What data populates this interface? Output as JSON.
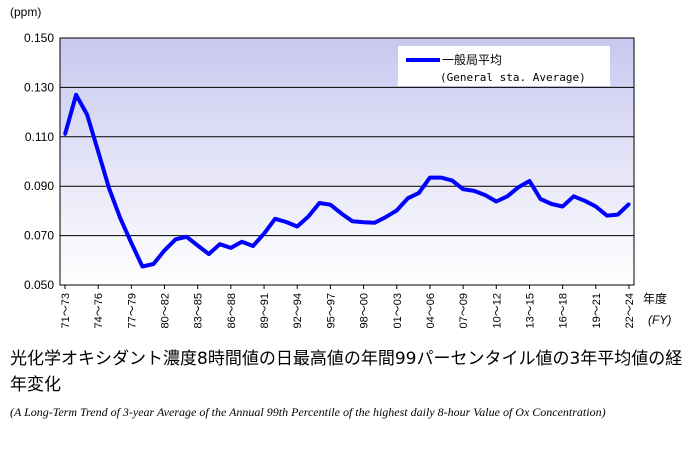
{
  "chart_data": {
    "type": "line",
    "y_unit": "(ppm)",
    "x_unit": "年度",
    "x_unit_en": "(FY)",
    "ylim": [
      0.05,
      0.15
    ],
    "y_ticks": [
      "0.050",
      "0.070",
      "0.090",
      "0.110",
      "0.130",
      "0.150"
    ],
    "x_tick_labels": [
      "71～73",
      "74～76",
      "77～79",
      "80～82",
      "83～85",
      "86～88",
      "89～91",
      "92～94",
      "95～97",
      "98～00",
      "01～03",
      "04～06",
      "07～09",
      "10～12",
      "13～15",
      "16～18",
      "19～21",
      "22～24"
    ],
    "x": [
      "71～73",
      "72～74",
      "73～75",
      "74～76",
      "75～77",
      "76～78",
      "77～79",
      "78～80",
      "79～81",
      "80～82",
      "81～83",
      "82～84",
      "83～85",
      "84～86",
      "85～87",
      "86～88",
      "87～89",
      "88～90",
      "89～91",
      "90～92",
      "91～93",
      "92～94",
      "93～95",
      "94～96",
      "95～97",
      "96～98",
      "97～99",
      "98～00",
      "99～01",
      "00～02",
      "01～03",
      "02～04",
      "03～05",
      "04～06",
      "05～07",
      "06～08",
      "07～09",
      "08～10",
      "09～11",
      "10～12",
      "11～13",
      "12～14",
      "13～15",
      "14～16",
      "15～17",
      "16～18",
      "17～19",
      "18～20",
      "19～21",
      "20～22",
      "21～23",
      "22～24"
    ],
    "series": [
      {
        "name": "一般局平均",
        "name_en": "(General sta. Average)",
        "color": "#0000ff",
        "values": [
          0.111,
          0.127,
          0.119,
          0.104,
          0.089,
          0.077,
          0.067,
          0.0575,
          0.0585,
          0.064,
          0.0685,
          0.0695,
          0.066,
          0.0625,
          0.0665,
          0.065,
          0.0675,
          0.0658,
          0.0708,
          0.0768,
          0.0755,
          0.0737,
          0.0777,
          0.0832,
          0.0825,
          0.0789,
          0.0758,
          0.0754,
          0.0752,
          0.0775,
          0.0802,
          0.0851,
          0.0873,
          0.0935,
          0.0935,
          0.0923,
          0.0888,
          0.0881,
          0.0864,
          0.0838,
          0.0859,
          0.0896,
          0.0921,
          0.0848,
          0.0828,
          0.0818,
          0.0859,
          0.0841,
          0.0818,
          0.0781,
          0.0785,
          0.0828
        ]
      }
    ],
    "grid": true,
    "legend_position": "top-right",
    "title": "光化学オキシダント濃度8時間値の日最高値の年間99パーセンタイル値の3年平均値の経年変化",
    "subtitle": "(A Long-Term Trend of 3-year Average of the Annual 99th Percentile of the highest daily  8-hour Value of Ox Concentration)"
  }
}
